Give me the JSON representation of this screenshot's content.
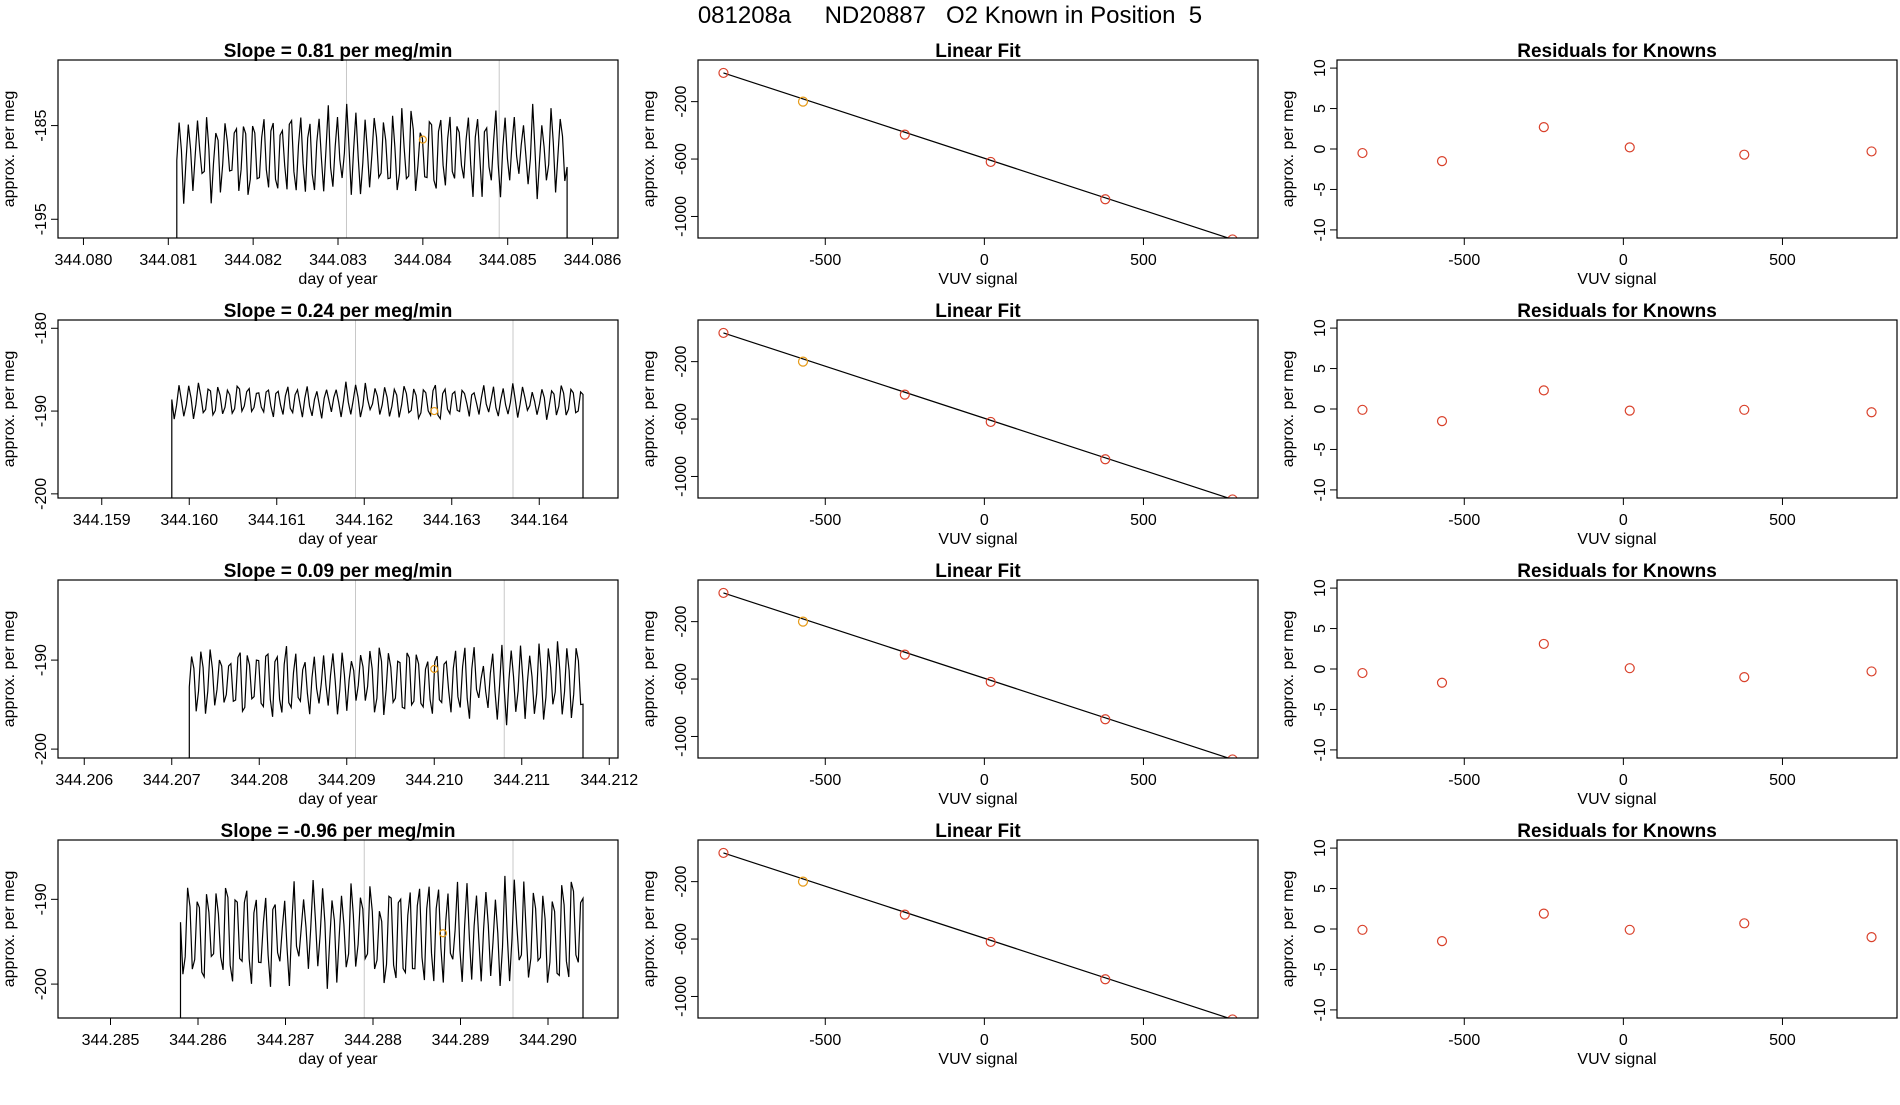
{
  "figure_title": "081208a     ND20887   O2 Known in Position  5",
  "colors": {
    "line": "#000000",
    "grid_line": "#c8c8c8",
    "known_point": "#d9412b",
    "highlight_point": "#e69a17"
  },
  "chart_data": [
    {
      "type": "line",
      "title": "Slope =  0.81  per meg/min",
      "xlabel": "day of year",
      "ylabel": "approx. per meg",
      "x_ticks": [
        "344.080",
        "344.081",
        "344.082",
        "344.083",
        "344.084",
        "344.085",
        "344.086"
      ],
      "x_tick_values": [
        344.08,
        344.081,
        344.082,
        344.083,
        344.084,
        344.085,
        344.086
      ],
      "y_ticks": [
        "-195",
        "-185"
      ],
      "y_tick_values": [
        -195,
        -185
      ],
      "xlim": [
        344.0797,
        344.0863
      ],
      "ylim": [
        -197,
        -178
      ],
      "series_start": 344.0811,
      "series_end": 344.0857,
      "series_center": -188,
      "series_amplitude": 5,
      "flat_value": -197.5,
      "vlines": [
        344.0831,
        344.0849
      ],
      "marker": {
        "x": 344.084,
        "y": -186.5
      }
    },
    {
      "type": "scatter",
      "title": "Linear Fit",
      "xlabel": "VUV signal",
      "ylabel": "approx. per meg",
      "x_ticks": [
        "-500",
        "0",
        "500"
      ],
      "x_tick_values": [
        -500,
        0,
        500
      ],
      "y_ticks": [
        "-1000",
        "-600",
        "-200"
      ],
      "y_tick_values": [
        -1000,
        -600,
        -200
      ],
      "xlim": [
        -900,
        860
      ],
      "ylim": [
        -1150,
        90
      ],
      "x": [
        -820,
        -570,
        -250,
        20,
        380,
        780
      ],
      "y": [
        0,
        -200,
        -430,
        -620,
        -880,
        -1160
      ],
      "highlight_index": 1,
      "fit_line": [
        [
          -820,
          0
        ],
        [
          780,
          -1160
        ]
      ]
    },
    {
      "type": "scatter",
      "title": "Residuals for Knowns",
      "xlabel": "VUV signal",
      "ylabel": "approx. per meg",
      "x_ticks": [
        "-500",
        "0",
        "500"
      ],
      "x_tick_values": [
        -500,
        0,
        500
      ],
      "y_ticks": [
        "-10",
        "-5",
        "0",
        "5",
        "10"
      ],
      "y_tick_values": [
        -10,
        -5,
        0,
        5,
        10
      ],
      "xlim": [
        -900,
        860
      ],
      "ylim": [
        -11,
        11
      ],
      "x": [
        -820,
        -570,
        -250,
        20,
        380,
        780
      ],
      "y": [
        -0.5,
        -1.5,
        2.7,
        0.2,
        -0.7,
        -0.3
      ]
    },
    {
      "type": "line",
      "title": "Slope =  0.24  per meg/min",
      "xlabel": "day of year",
      "ylabel": "approx. per meg",
      "x_ticks": [
        "344.159",
        "344.160",
        "344.161",
        "344.162",
        "344.163",
        "344.164"
      ],
      "x_tick_values": [
        344.159,
        344.16,
        344.161,
        344.162,
        344.163,
        344.164
      ],
      "y_ticks": [
        "-200",
        "-190",
        "-180"
      ],
      "y_tick_values": [
        -200,
        -190,
        -180
      ],
      "xlim": [
        344.1585,
        344.1649
      ],
      "ylim": [
        -200.5,
        -179
      ],
      "series_start": 344.1598,
      "series_end": 344.1645,
      "series_center": -188.8,
      "series_amplitude": 2.3,
      "flat_value": -201,
      "vlines": [
        344.1619,
        344.1637
      ],
      "marker": {
        "x": 344.1628,
        "y": -190
      }
    },
    {
      "type": "scatter",
      "title": "Linear Fit",
      "xlabel": "VUV signal",
      "ylabel": "approx. per meg",
      "x_ticks": [
        "-500",
        "0",
        "500"
      ],
      "x_tick_values": [
        -500,
        0,
        500
      ],
      "y_ticks": [
        "-1000",
        "-600",
        "-200"
      ],
      "y_tick_values": [
        -1000,
        -600,
        -200
      ],
      "xlim": [
        -900,
        860
      ],
      "ylim": [
        -1150,
        90
      ],
      "x": [
        -820,
        -570,
        -250,
        20,
        380,
        780
      ],
      "y": [
        0,
        -200,
        -430,
        -620,
        -880,
        -1160
      ],
      "highlight_index": 1,
      "fit_line": [
        [
          -820,
          0
        ],
        [
          780,
          -1160
        ]
      ]
    },
    {
      "type": "scatter",
      "title": "Residuals for Knowns",
      "xlabel": "VUV signal",
      "ylabel": "approx. per meg",
      "x_ticks": [
        "-500",
        "0",
        "500"
      ],
      "x_tick_values": [
        -500,
        0,
        500
      ],
      "y_ticks": [
        "-10",
        "-5",
        "0",
        "5",
        "10"
      ],
      "y_tick_values": [
        -10,
        -5,
        0,
        5,
        10
      ],
      "xlim": [
        -900,
        860
      ],
      "ylim": [
        -11,
        11
      ],
      "x": [
        -820,
        -570,
        -250,
        20,
        380,
        780
      ],
      "y": [
        -0.1,
        -1.5,
        2.3,
        -0.2,
        -0.1,
        -0.4
      ]
    },
    {
      "type": "line",
      "title": "Slope =  0.09  per meg/min",
      "xlabel": "day of year",
      "ylabel": "approx. per meg",
      "x_ticks": [
        "344.206",
        "344.207",
        "344.208",
        "344.209",
        "344.210",
        "344.211",
        "344.212"
      ],
      "x_tick_values": [
        344.206,
        344.207,
        344.208,
        344.209,
        344.21,
        344.211,
        344.212
      ],
      "y_ticks": [
        "-200",
        "-190"
      ],
      "y_tick_values": [
        -200,
        -190
      ],
      "xlim": [
        344.2057,
        344.2121
      ],
      "ylim": [
        -201,
        -181
      ],
      "series_start": 344.2072,
      "series_end": 344.2117,
      "series_center": -192.5,
      "series_amplitude": 4.5,
      "flat_value": -202,
      "vlines": [
        344.2091,
        344.2108
      ],
      "marker": {
        "x": 344.21,
        "y": -191
      }
    },
    {
      "type": "scatter",
      "title": "Linear Fit",
      "xlabel": "VUV signal",
      "ylabel": "approx. per meg",
      "x_ticks": [
        "-500",
        "0",
        "500"
      ],
      "x_tick_values": [
        -500,
        0,
        500
      ],
      "y_ticks": [
        "-1000",
        "-600",
        "-200"
      ],
      "y_tick_values": [
        -1000,
        -600,
        -200
      ],
      "xlim": [
        -900,
        860
      ],
      "ylim": [
        -1150,
        90
      ],
      "x": [
        -820,
        -570,
        -250,
        20,
        380,
        780
      ],
      "y": [
        0,
        -200,
        -430,
        -620,
        -880,
        -1160
      ],
      "highlight_index": 1,
      "fit_line": [
        [
          -820,
          0
        ],
        [
          780,
          -1160
        ]
      ]
    },
    {
      "type": "scatter",
      "title": "Residuals for Knowns",
      "xlabel": "VUV signal",
      "ylabel": "approx. per meg",
      "x_ticks": [
        "-500",
        "0",
        "500"
      ],
      "x_tick_values": [
        -500,
        0,
        500
      ],
      "y_ticks": [
        "-10",
        "-5",
        "0",
        "5",
        "10"
      ],
      "y_tick_values": [
        -10,
        -5,
        0,
        5,
        10
      ],
      "xlim": [
        -900,
        860
      ],
      "ylim": [
        -11,
        11
      ],
      "x": [
        -820,
        -570,
        -250,
        20,
        380,
        780
      ],
      "y": [
        -0.5,
        -1.7,
        3.1,
        0.1,
        -1.0,
        -0.3
      ]
    },
    {
      "type": "line",
      "title": "Slope =  -0.96  per meg/min",
      "xlabel": "day of year",
      "ylabel": "approx. per meg",
      "x_ticks": [
        "344.285",
        "344.286",
        "344.287",
        "344.288",
        "344.289",
        "344.290"
      ],
      "x_tick_values": [
        344.285,
        344.286,
        344.287,
        344.288,
        344.289,
        344.29
      ],
      "y_ticks": [
        "-200",
        "-190"
      ],
      "y_tick_values": [
        -200,
        -190
      ],
      "xlim": [
        344.2844,
        344.2908
      ],
      "ylim": [
        -204,
        -183
      ],
      "series_start": 344.2858,
      "series_end": 344.2904,
      "series_center": -194,
      "series_amplitude": 7,
      "flat_value": -205,
      "vlines": [
        344.2879,
        344.2896
      ],
      "marker": {
        "x": 344.2888,
        "y": -194
      }
    },
    {
      "type": "scatter",
      "title": "Linear Fit",
      "xlabel": "VUV signal",
      "ylabel": "approx. per meg",
      "x_ticks": [
        "-500",
        "0",
        "500"
      ],
      "x_tick_values": [
        -500,
        0,
        500
      ],
      "y_ticks": [
        "-1000",
        "-600",
        "-200"
      ],
      "y_tick_values": [
        -1000,
        -600,
        -200
      ],
      "xlim": [
        -900,
        860
      ],
      "ylim": [
        -1150,
        90
      ],
      "x": [
        -820,
        -570,
        -250,
        20,
        380,
        780
      ],
      "y": [
        0,
        -200,
        -430,
        -620,
        -880,
        -1160
      ],
      "highlight_index": 1,
      "fit_line": [
        [
          -820,
          0
        ],
        [
          780,
          -1160
        ]
      ]
    },
    {
      "type": "scatter",
      "title": "Residuals for Knowns",
      "xlabel": "VUV signal",
      "ylabel": "approx. per meg",
      "x_ticks": [
        "-500",
        "0",
        "500"
      ],
      "x_tick_values": [
        -500,
        0,
        500
      ],
      "y_ticks": [
        "-10",
        "-5",
        "0",
        "5",
        "10"
      ],
      "y_tick_values": [
        -10,
        -5,
        0,
        5,
        10
      ],
      "xlim": [
        -900,
        860
      ],
      "ylim": [
        -11,
        11
      ],
      "x": [
        -820,
        -570,
        -250,
        20,
        380,
        780
      ],
      "y": [
        -0.1,
        -1.5,
        1.9,
        -0.1,
        0.7,
        -1.0
      ]
    }
  ]
}
